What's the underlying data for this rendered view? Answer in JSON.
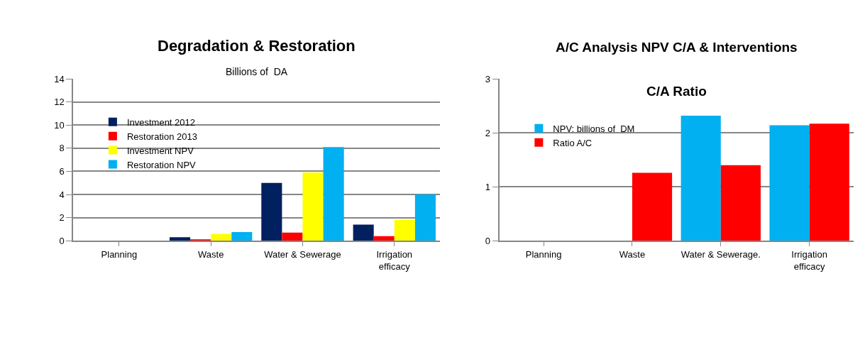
{
  "chart_data": [
    {
      "type": "bar",
      "title": "Degradation & Restoration",
      "subtitle": "Billions of  DA",
      "categories": [
        "Planning",
        "Waste",
        "Water & Sewerage",
        "Irrigation\nefficacy"
      ],
      "series": [
        {
          "name": "Investment 2012",
          "color": "#002060",
          "values": [
            null,
            0.3,
            5,
            1.4
          ]
        },
        {
          "name": "Restoration 2013",
          "color": "#ff0000",
          "values": [
            null,
            0.1,
            0.7,
            0.4
          ]
        },
        {
          "name": "Investment NPV",
          "color": "#ffff00",
          "values": [
            null,
            0.6,
            5.9,
            1.8
          ]
        },
        {
          "name": "Restoration NPV",
          "color": "#00b0f0",
          "values": [
            null,
            0.75,
            8.1,
            4
          ]
        }
      ],
      "ylim": [
        0,
        14
      ],
      "yticks": [
        0,
        2,
        4,
        6,
        8,
        10,
        12,
        14
      ],
      "grid": "y",
      "legend": "top left"
    },
    {
      "type": "bar",
      "title": "A/C Analysis NPV C/A & Interventions",
      "subtitle": "C/A Ratio",
      "categories": [
        "Planning",
        "Waste",
        "Water & Sewerage.",
        "Irrigation\nefficacy"
      ],
      "series": [
        {
          "name": "NPV: billions of  DM",
          "color": "#00b0f0",
          "values": [
            null,
            null,
            2.32,
            2.14
          ]
        },
        {
          "name": "Ratio A/C",
          "color": "#ff0000",
          "values": [
            null,
            1.26,
            1.4,
            2.17
          ]
        }
      ],
      "ylim": [
        0,
        3
      ],
      "yticks": [
        0,
        1,
        2,
        3
      ],
      "grid": "y",
      "legend": "top left"
    }
  ]
}
